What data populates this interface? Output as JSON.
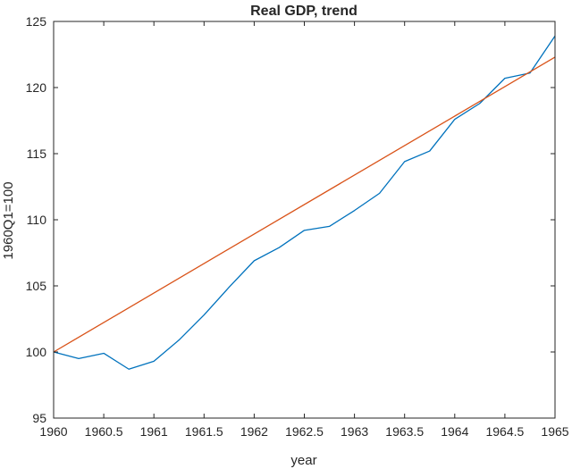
{
  "chart_data": {
    "type": "line",
    "title": "Real GDP, trend",
    "xlabel": "year",
    "ylabel": "1960Q1=100",
    "xlim": [
      1960,
      1965
    ],
    "ylim": [
      95,
      125
    ],
    "xticks": [
      1960,
      1960.5,
      1961,
      1961.5,
      1962,
      1962.5,
      1963,
      1963.5,
      1964,
      1964.5,
      1965
    ],
    "xtick_labels": [
      "1960",
      "1960.5",
      "1961",
      "1961.5",
      "1962",
      "1962.5",
      "1963",
      "1963.5",
      "1964",
      "1964.5",
      "1965"
    ],
    "yticks": [
      95,
      100,
      105,
      110,
      115,
      120,
      125
    ],
    "ytick_labels": [
      "95",
      "100",
      "105",
      "110",
      "115",
      "120",
      "125"
    ],
    "grid": false,
    "series": [
      {
        "color": "#0072BD",
        "x": [
          1960,
          1960.25,
          1960.5,
          1960.75,
          1961,
          1961.25,
          1961.5,
          1961.75,
          1962,
          1962.25,
          1962.5,
          1962.75,
          1963,
          1963.25,
          1963.5,
          1963.75,
          1964,
          1964.25,
          1964.5,
          1964.75,
          1965
        ],
        "y": [
          100,
          99.5,
          99.9,
          98.7,
          99.3,
          100.9,
          102.8,
          104.9,
          106.9,
          107.9,
          109.2,
          109.5,
          110.7,
          112.0,
          114.4,
          115.2,
          117.6,
          118.8,
          120.7,
          121.1,
          123.9
        ]
      },
      {
        "color": "#D95319",
        "x": [
          1960,
          1965
        ],
        "y": [
          100,
          122.3
        ]
      }
    ]
  }
}
